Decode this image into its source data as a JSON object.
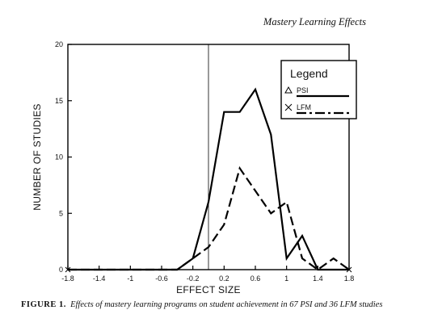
{
  "header": {
    "running_title": "Mastery Learning Effects"
  },
  "caption": {
    "label": "FIGURE 1.",
    "text": "Effects of mastery learning programs on student achievement in 67 PSI and 36 LFM studies"
  },
  "chart_data": {
    "type": "line",
    "title": "",
    "xlabel": "EFFECT SIZE",
    "ylabel": "NUMBER OF STUDIES",
    "xlim": [
      -1.8,
      1.8
    ],
    "ylim": [
      0,
      20
    ],
    "x_ticks": [
      -1.8,
      -1.4,
      -1,
      -0.6,
      -0.2,
      0.2,
      0.6,
      1,
      1.4,
      1.8
    ],
    "x_tick_labels": [
      "-1.8",
      "-1.4",
      "-1",
      "-0.6",
      "-0.2",
      "0.2",
      "0.6",
      "1",
      "1.4",
      "1.8"
    ],
    "y_ticks": [
      0,
      5,
      10,
      15,
      20
    ],
    "y_tick_labels": [
      "0",
      "5",
      "10",
      "15",
      "20"
    ],
    "reference_line_x": 0,
    "grid": false,
    "legend": {
      "title": "Legend",
      "placement": "top-right",
      "entries": [
        {
          "label": "PSI",
          "marker": "triangle",
          "line_style": "solid"
        },
        {
          "label": "LFM",
          "marker": "x",
          "line_style": "dash-dot"
        }
      ]
    },
    "x": [
      -1.8,
      -1.6,
      -1.4,
      -1.2,
      -1.0,
      -0.8,
      -0.6,
      -0.4,
      -0.2,
      0.0,
      0.2,
      0.4,
      0.6,
      0.8,
      1.0,
      1.2,
      1.4,
      1.6,
      1.8
    ],
    "series": [
      {
        "name": "PSI",
        "color": "#000000",
        "values": [
          0,
          0,
          0,
          0,
          0,
          0,
          0,
          0,
          1,
          6,
          14,
          14,
          16,
          12,
          1,
          3,
          0,
          0,
          0
        ]
      },
      {
        "name": "LFM",
        "color": "#000000",
        "values": [
          0,
          0,
          0,
          0,
          0,
          0,
          0,
          0,
          1,
          2,
          4,
          9,
          7,
          5,
          6,
          1,
          0,
          1,
          0
        ]
      }
    ]
  }
}
